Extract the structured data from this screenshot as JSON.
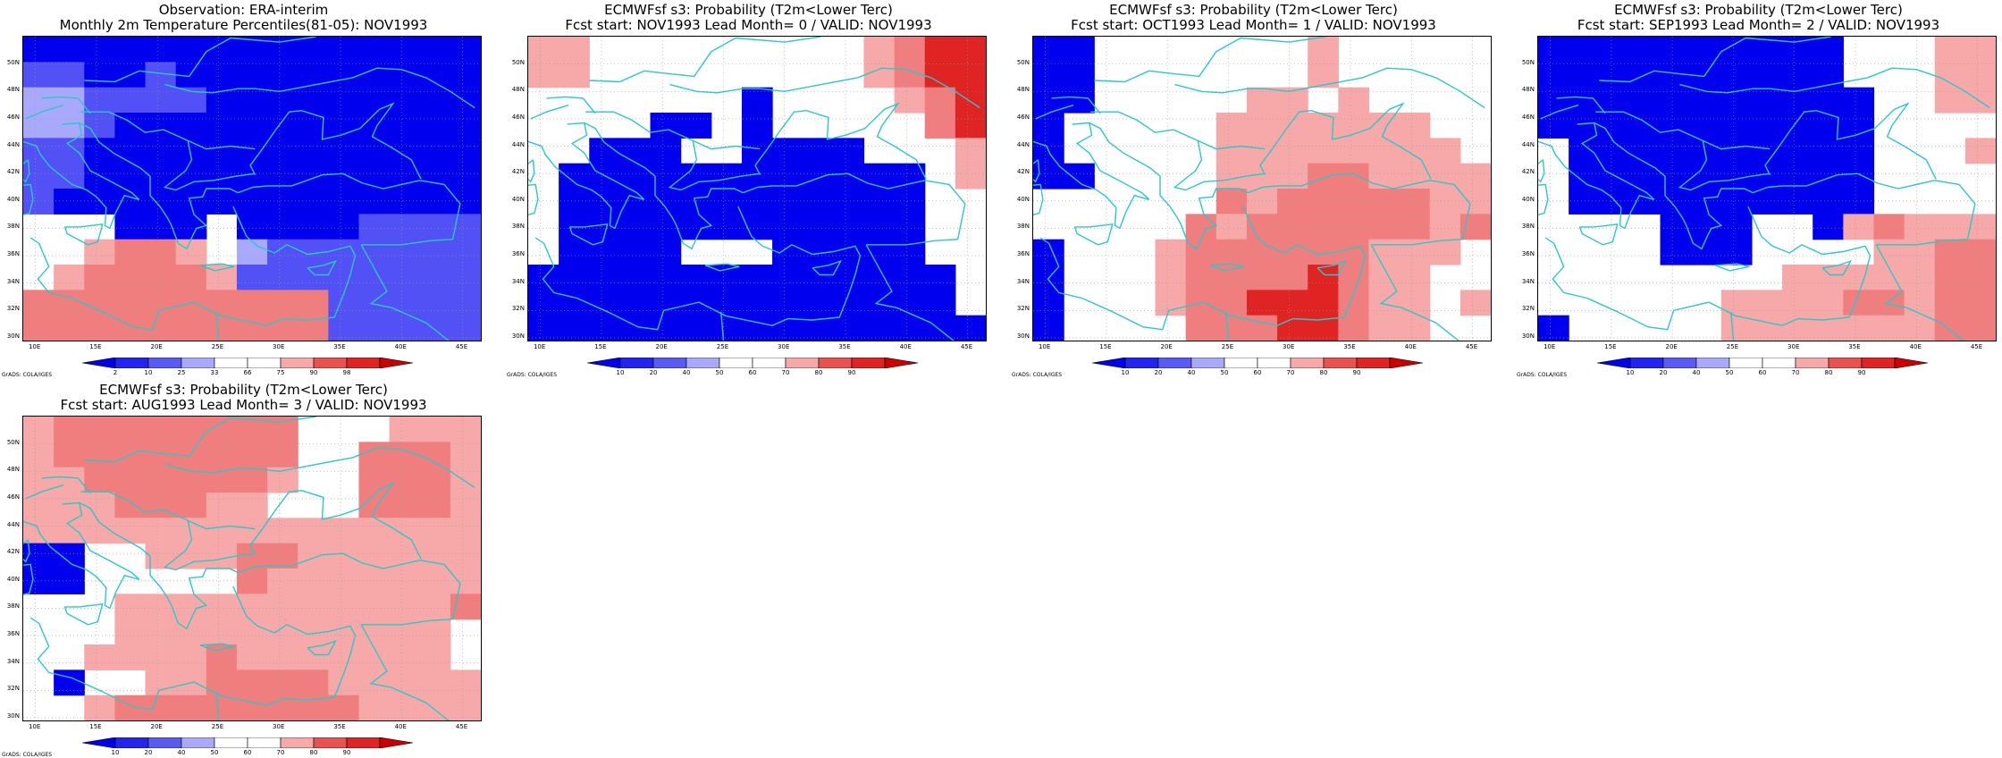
{
  "credit_text": "GrADS: COLA/IGES",
  "lat_labels": [
    "50N",
    "48N",
    "46N",
    "44N",
    "42N",
    "40N",
    "38N",
    "36N",
    "34N",
    "32N",
    "30N"
  ],
  "lon_labels": [
    "10E",
    "15E",
    "20E",
    "25E",
    "30E",
    "35E",
    "40E",
    "45E"
  ],
  "colors": {
    "coast": "#2bc8c8",
    "blue_scale": [
      "#0000ee",
      "#2a2af2",
      "#5151f5",
      "#7a7af8",
      "#a9a9fb"
    ],
    "red_scale": [
      "#f7a9a9",
      "#f17e7e",
      "#ea5252",
      "#e02424",
      "#cc0000"
    ]
  },
  "panels": [
    {
      "title1": "Observation: ERA-interim",
      "title2": "Monthly 2m Temperature Percentiles(81-05): NOV1993",
      "colorbar": {
        "ticks": [
          "2",
          "10",
          "25",
          "33",
          "66",
          "75",
          "90",
          "98"
        ]
      },
      "grid": [
        "BBBBBBBBBBBBBBB",
        "CCBBCBBBBBBBBBB",
        "DDCCCCBBBBBBBBB",
        "DDCBBBBBBBBBBBB",
        "CCBBBBBBBBBBBBB",
        "CCBBBBBBBBBBBBB",
        "CBBBBBBBBBBBBBB",
        "...BBB.BBBBCCCC",
        "..lmml.DCCCCCCC",
        ".lmmmmlCCCCCCCC",
        "mmmmmmmmmmCCCCC",
        "mmmmmmmmmmCCCCC"
      ]
    },
    {
      "title1": "ECMWFsf s3: Probability (T2m<Lower Terc)",
      "title2": "Fcst start: NOV1993   Lead Month= 0 / VALID: NOV1993",
      "colorbar": {
        "ticks": [
          "10",
          "20",
          "40",
          "50",
          "60",
          "70",
          "80",
          "90"
        ]
      },
      "grid": [
        "ll.........lmrr",
        "ll.........lmrr",
        ".......B....lmr",
        "....BB.B.....mr",
        "..BBB..BBBB...l",
        ".BBBBBBBBBBBB.l",
        ".BBBBBBBBBBBB..",
        ".BBBBBBBBBBBB..",
        ".BBBB...BBBBB..",
        "BBBBBBBBBBBBBB.",
        "BBBBBBBBBBBBBB.",
        "BBBBBBBBBBBBBBB"
      ]
    },
    {
      "title1": "ECMWFsf s3: Probability (T2m<Lower Terc)",
      "title2": "Fcst start: OCT1993   Lead Month= 1 / VALID: NOV1993",
      "colorbar": {
        "ticks": [
          "10",
          "20",
          "40",
          "50",
          "60",
          "70",
          "80",
          "90"
        ]
      },
      "grid": [
        "BB.......l.....",
        "BB.......l.....",
        "BB.....ll.l....",
        "B.....lllllll..",
        "B.....llllllll.",
        "BB....lllmmllll",
        "......mlmmmmmll",
        ".....mlmmmmmmlm",
        "B...lmmmmmmlll.",
        "B...lmmmmrmll..",
        "B...lmmrrrmll.l",
        "B....mmmrrmll.."
      ]
    },
    {
      "title1": "ECMWFsf s3: Probability (T2m<Lower Terc)",
      "title2": "Fcst start: SEP1993   Lead Month= 2 / VALID: NOV1993",
      "colorbar": {
        "ticks": [
          "10",
          "20",
          "40",
          "50",
          "60",
          "70",
          "80",
          "90"
        ]
      },
      "grid": [
        "BBBBBBBBBB...ll",
        "BBBBBBBBBB...ll",
        "BBBBBBBBBBB..ll",
        "BBBBBBBBBBB....",
        ".BBBBBBBBBB...l",
        ".BBBBBBBBBB....",
        ".BBBBBBBBBB....",
        "....BBB..Blmlll",
        "....BBB....llmm",
        "........lllllmm",
        "......llllmmlmm",
        "B.....lllllllmm"
      ]
    },
    {
      "title1": "ECMWFsf s3: Probability (T2m<Lower Terc)",
      "title2": "Fcst start: AUG1993   Lead Month= 3 / VALID: NOV1993",
      "colorbar": {
        "ticks": [
          "10",
          "20",
          "40",
          "50",
          "60",
          "70",
          "80",
          "90"
        ]
      },
      "grid": [
        "lmmmmmmmm...lll",
        "lmmmmmmmm..mmml",
        "llmmmmmml..mmml",
        "lllmmmll...mmml",
        "lllllllllllllll",
        "BB..lllmmllllll",
        "BB.....mlllllll",
        "...lllllllllllm",
        "...lllllllllll.",
        "..llllmlllllll.",
        ".B..llmmmmlllll",
        "..lmmmmmmmmllll"
      ]
    }
  ]
}
